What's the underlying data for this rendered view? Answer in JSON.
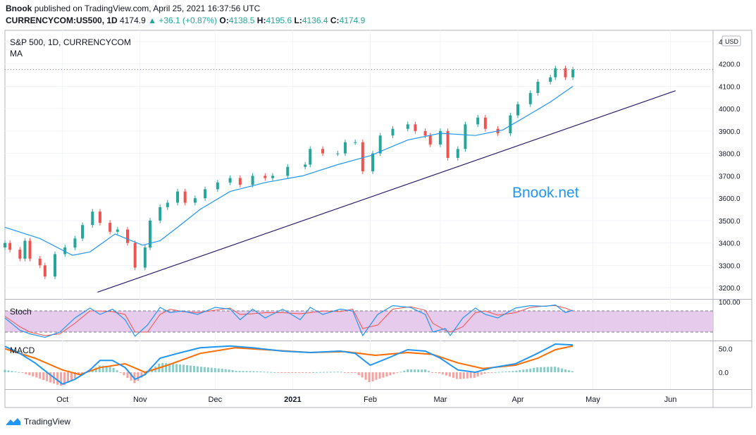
{
  "header": {
    "publisher": "Bnook",
    "published_text": "published on TradingView.com, April 25, 2021 16:37:56 UTC",
    "symbol_line": "CURRENCYCOM:US500, 1D",
    "last": "4174.9",
    "change": "+36.1 (+0.87%)",
    "o_label": "O:",
    "o": "4138.5",
    "h_label": "H:",
    "h": "4195.6",
    "l_label": "L:",
    "l": "4136.4",
    "c_label": "C:",
    "c": "4174.9"
  },
  "footer": {
    "brand": "TradingView",
    "icon": "tradingview-logo-icon"
  },
  "colors": {
    "up": "#26a69a",
    "down": "#ef5350",
    "ma": "#2196f3",
    "trendline": "#2e1a6b",
    "stoch_k": "#2196f3",
    "stoch_d": "#ef5350",
    "stoch_band": "#e1bee7",
    "macd": "#2196f3",
    "signal": "#ff6d00",
    "watermark": "#2196f3"
  },
  "chart_data": [
    {
      "type": "candlestick",
      "title": "S&P 500, 1D, CURRENCYCOM",
      "indicator_label": "MA",
      "currency": "USD",
      "watermark": "Bnook.net",
      "x_labels": [
        "Oct",
        "Nov",
        "Dec",
        "2021",
        "Feb",
        "Mar",
        "Apr",
        "May",
        "Jun"
      ],
      "x_range": [
        "2020-09-08",
        "2021-06-18"
      ],
      "x_label_dates": [
        "2020-10-01",
        "2020-11-01",
        "2020-12-01",
        "2021-01-01",
        "2021-02-01",
        "2021-03-01",
        "2021-04-01",
        "2021-05-01",
        "2021-06-01"
      ],
      "y_ticks": [
        3200,
        3300,
        3400,
        3500,
        3600,
        3700,
        3800,
        3900,
        4000,
        4100,
        4200,
        4300
      ],
      "y_tick_labels": [
        "3200.0",
        "3300.0",
        "3400.0",
        "3500.0",
        "3600.0",
        "3700.0",
        "3800.0",
        "3900.0",
        "4000.0",
        "4100.0",
        "4200.0",
        "4300.0"
      ],
      "ylim": [
        3150,
        4350
      ],
      "last_price": 4174.9,
      "trendline": [
        [
          "2020-10-15",
          3180
        ],
        [
          "2021-06-03",
          4080
        ]
      ],
      "close_series": [
        [
          "2020-09-08",
          3400
        ],
        [
          "2020-09-10",
          3370
        ],
        [
          "2020-09-14",
          3330
        ],
        [
          "2020-09-16",
          3410
        ],
        [
          "2020-09-18",
          3330
        ],
        [
          "2020-09-22",
          3300
        ],
        [
          "2020-09-24",
          3250
        ],
        [
          "2020-09-28",
          3350
        ],
        [
          "2020-10-02",
          3380
        ],
        [
          "2020-10-06",
          3420
        ],
        [
          "2020-10-09",
          3480
        ],
        [
          "2020-10-13",
          3540
        ],
        [
          "2020-10-16",
          3490
        ],
        [
          "2020-10-20",
          3450
        ],
        [
          "2020-10-23",
          3460
        ],
        [
          "2020-10-27",
          3400
        ],
        [
          "2020-10-30",
          3290
        ],
        [
          "2020-11-03",
          3380
        ],
        [
          "2020-11-05",
          3500
        ],
        [
          "2020-11-09",
          3560
        ],
        [
          "2020-11-12",
          3580
        ],
        [
          "2020-11-16",
          3630
        ],
        [
          "2020-11-19",
          3580
        ],
        [
          "2020-11-23",
          3600
        ],
        [
          "2020-11-27",
          3640
        ],
        [
          "2020-12-02",
          3670
        ],
        [
          "2020-12-07",
          3690
        ],
        [
          "2020-12-11",
          3660
        ],
        [
          "2020-12-16",
          3700
        ],
        [
          "2020-12-21",
          3690
        ],
        [
          "2020-12-24",
          3700
        ],
        [
          "2020-12-30",
          3740
        ],
        [
          "2021-01-06",
          3750
        ],
        [
          "2021-01-08",
          3820
        ],
        [
          "2021-01-13",
          3800
        ],
        [
          "2021-01-19",
          3800
        ],
        [
          "2021-01-22",
          3850
        ],
        [
          "2021-01-26",
          3850
        ],
        [
          "2021-01-29",
          3720
        ],
        [
          "2021-02-02",
          3800
        ],
        [
          "2021-02-05",
          3880
        ],
        [
          "2021-02-10",
          3910
        ],
        [
          "2021-02-16",
          3930
        ],
        [
          "2021-02-19",
          3900
        ],
        [
          "2021-02-23",
          3880
        ],
        [
          "2021-02-25",
          3840
        ],
        [
          "2021-03-01",
          3900
        ],
        [
          "2021-03-04",
          3780
        ],
        [
          "2021-03-08",
          3820
        ],
        [
          "2021-03-11",
          3930
        ],
        [
          "2021-03-16",
          3960
        ],
        [
          "2021-03-19",
          3910
        ],
        [
          "2021-03-24",
          3890
        ],
        [
          "2021-03-29",
          3970
        ],
        [
          "2021-04-01",
          4020
        ],
        [
          "2021-04-06",
          4070
        ],
        [
          "2021-04-09",
          4120
        ],
        [
          "2021-04-14",
          4140
        ],
        [
          "2021-04-16",
          4180
        ],
        [
          "2021-04-20",
          4140
        ],
        [
          "2021-04-23",
          4175
        ]
      ],
      "ma_series": [
        [
          "2020-09-08",
          3470
        ],
        [
          "2020-09-22",
          3420
        ],
        [
          "2020-10-05",
          3345
        ],
        [
          "2020-10-12",
          3360
        ],
        [
          "2020-10-22",
          3440
        ],
        [
          "2020-11-02",
          3390
        ],
        [
          "2020-11-09",
          3410
        ],
        [
          "2020-11-16",
          3470
        ],
        [
          "2020-11-25",
          3550
        ],
        [
          "2020-12-07",
          3630
        ],
        [
          "2020-12-21",
          3670
        ],
        [
          "2021-01-05",
          3700
        ],
        [
          "2021-01-19",
          3750
        ],
        [
          "2021-02-01",
          3790
        ],
        [
          "2021-02-16",
          3860
        ],
        [
          "2021-03-01",
          3890
        ],
        [
          "2021-03-15",
          3880
        ],
        [
          "2021-03-26",
          3905
        ],
        [
          "2021-04-05",
          3970
        ],
        [
          "2021-04-14",
          4030
        ],
        [
          "2021-04-23",
          4100
        ]
      ]
    },
    {
      "type": "line",
      "title": "Stoch",
      "y_tick_labels": [
        "100.00"
      ],
      "ylim": [
        0,
        100
      ],
      "band": [
        20,
        80
      ],
      "series": [
        {
          "values": [
            [
              "2020-09-08",
              60
            ],
            [
              "2020-09-14",
              25
            ],
            [
              "2020-09-18",
              15
            ],
            [
              "2020-09-24",
              5
            ],
            [
              "2020-09-30",
              20
            ],
            [
              "2020-10-06",
              60
            ],
            [
              "2020-10-12",
              88
            ],
            [
              "2020-10-16",
              70
            ],
            [
              "2020-10-21",
              85
            ],
            [
              "2020-10-26",
              55
            ],
            [
              "2020-10-30",
              8
            ],
            [
              "2020-11-04",
              40
            ],
            [
              "2020-11-09",
              90
            ],
            [
              "2020-11-13",
              75
            ],
            [
              "2020-11-18",
              80
            ],
            [
              "2020-11-24",
              70
            ],
            [
              "2020-12-01",
              90
            ],
            [
              "2020-12-07",
              85
            ],
            [
              "2020-12-11",
              55
            ],
            [
              "2020-12-16",
              85
            ],
            [
              "2020-12-21",
              60
            ],
            [
              "2020-12-28",
              85
            ],
            [
              "2021-01-04",
              55
            ],
            [
              "2021-01-08",
              90
            ],
            [
              "2021-01-13",
              70
            ],
            [
              "2021-01-20",
              85
            ],
            [
              "2021-01-25",
              80
            ],
            [
              "2021-01-29",
              10
            ],
            [
              "2021-02-04",
              70
            ],
            [
              "2021-02-10",
              95
            ],
            [
              "2021-02-17",
              90
            ],
            [
              "2021-02-23",
              70
            ],
            [
              "2021-02-26",
              20
            ],
            [
              "2021-03-03",
              30
            ],
            [
              "2021-03-05",
              10
            ],
            [
              "2021-03-10",
              60
            ],
            [
              "2021-03-15",
              88
            ],
            [
              "2021-03-19",
              70
            ],
            [
              "2021-03-24",
              60
            ],
            [
              "2021-03-31",
              88
            ],
            [
              "2021-04-06",
              95
            ],
            [
              "2021-04-12",
              93
            ],
            [
              "2021-04-16",
              97
            ],
            [
              "2021-04-20",
              75
            ],
            [
              "2021-04-23",
              82
            ]
          ]
        },
        {
          "values": [
            [
              "2020-09-08",
              65
            ],
            [
              "2020-09-14",
              35
            ],
            [
              "2020-09-18",
              20
            ],
            [
              "2020-09-24",
              10
            ],
            [
              "2020-09-30",
              15
            ],
            [
              "2020-10-06",
              45
            ],
            [
              "2020-10-12",
              80
            ],
            [
              "2020-10-16",
              80
            ],
            [
              "2020-10-21",
              78
            ],
            [
              "2020-10-26",
              70
            ],
            [
              "2020-10-30",
              20
            ],
            [
              "2020-11-04",
              20
            ],
            [
              "2020-11-09",
              70
            ],
            [
              "2020-11-13",
              85
            ],
            [
              "2020-11-18",
              78
            ],
            [
              "2020-11-24",
              75
            ],
            [
              "2020-12-01",
              82
            ],
            [
              "2020-12-07",
              88
            ],
            [
              "2020-12-11",
              70
            ],
            [
              "2020-12-16",
              72
            ],
            [
              "2020-12-21",
              75
            ],
            [
              "2020-12-28",
              75
            ],
            [
              "2021-01-04",
              72
            ],
            [
              "2021-01-08",
              75
            ],
            [
              "2021-01-13",
              80
            ],
            [
              "2021-01-20",
              78
            ],
            [
              "2021-01-25",
              85
            ],
            [
              "2021-01-29",
              30
            ],
            [
              "2021-02-04",
              40
            ],
            [
              "2021-02-10",
              85
            ],
            [
              "2021-02-17",
              92
            ],
            [
              "2021-02-23",
              82
            ],
            [
              "2021-02-26",
              45
            ],
            [
              "2021-03-03",
              25
            ],
            [
              "2021-03-05",
              20
            ],
            [
              "2021-03-10",
              35
            ],
            [
              "2021-03-15",
              75
            ],
            [
              "2021-03-19",
              80
            ],
            [
              "2021-03-24",
              68
            ],
            [
              "2021-03-31",
              75
            ],
            [
              "2021-04-06",
              90
            ],
            [
              "2021-04-12",
              94
            ],
            [
              "2021-04-16",
              95
            ],
            [
              "2021-04-20",
              88
            ],
            [
              "2021-04-23",
              80
            ]
          ]
        }
      ]
    },
    {
      "type": "line",
      "title": "MACD",
      "y_ticks": [
        0,
        50
      ],
      "y_tick_labels": [
        "0.0",
        "50.0"
      ],
      "ylim": [
        -30,
        60
      ],
      "series": [
        {
          "values": [
            [
              "2020-09-08",
              55
            ],
            [
              "2020-09-14",
              40
            ],
            [
              "2020-09-20",
              20
            ],
            [
              "2020-09-26",
              -5
            ],
            [
              "2020-10-01",
              -25
            ],
            [
              "2020-10-06",
              -15
            ],
            [
              "2020-10-12",
              5
            ],
            [
              "2020-10-16",
              25
            ],
            [
              "2020-10-21",
              25
            ],
            [
              "2020-10-26",
              10
            ],
            [
              "2020-10-30",
              -15
            ],
            [
              "2020-11-03",
              -5
            ],
            [
              "2020-11-09",
              30
            ],
            [
              "2020-11-16",
              40
            ],
            [
              "2020-11-25",
              52
            ],
            [
              "2020-12-07",
              56
            ],
            [
              "2020-12-16",
              52
            ],
            [
              "2020-12-28",
              45
            ],
            [
              "2021-01-08",
              42
            ],
            [
              "2021-01-20",
              45
            ],
            [
              "2021-01-26",
              40
            ],
            [
              "2021-02-01",
              15
            ],
            [
              "2021-02-08",
              30
            ],
            [
              "2021-02-16",
              48
            ],
            [
              "2021-02-23",
              45
            ],
            [
              "2021-03-01",
              30
            ],
            [
              "2021-03-08",
              5
            ],
            [
              "2021-03-15",
              0
            ],
            [
              "2021-03-22",
              10
            ],
            [
              "2021-03-31",
              18
            ],
            [
              "2021-04-08",
              38
            ],
            [
              "2021-04-16",
              60
            ],
            [
              "2021-04-23",
              58
            ]
          ]
        },
        {
          "values": [
            [
              "2020-09-08",
              50
            ],
            [
              "2020-09-20",
              30
            ],
            [
              "2020-10-01",
              5
            ],
            [
              "2020-10-08",
              -5
            ],
            [
              "2020-10-16",
              10
            ],
            [
              "2020-10-26",
              18
            ],
            [
              "2020-11-03",
              0
            ],
            [
              "2020-11-12",
              15
            ],
            [
              "2020-11-25",
              40
            ],
            [
              "2020-12-09",
              52
            ],
            [
              "2020-12-21",
              48
            ],
            [
              "2021-01-08",
              42
            ],
            [
              "2021-01-22",
              44
            ],
            [
              "2021-02-03",
              36
            ],
            [
              "2021-02-16",
              42
            ],
            [
              "2021-02-26",
              38
            ],
            [
              "2021-03-08",
              20
            ],
            [
              "2021-03-18",
              8
            ],
            [
              "2021-03-31",
              15
            ],
            [
              "2021-04-09",
              30
            ],
            [
              "2021-04-16",
              48
            ],
            [
              "2021-04-23",
              56
            ]
          ]
        }
      ]
    }
  ]
}
